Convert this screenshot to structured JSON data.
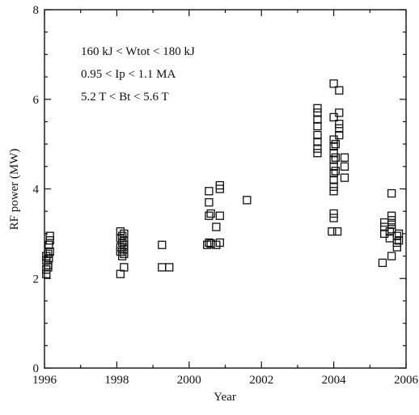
{
  "chart_data": {
    "type": "scatter",
    "xlabel": "Year",
    "ylabel": "RF power (MW)",
    "xlim": [
      1996,
      2006
    ],
    "ylim": [
      0,
      8
    ],
    "xticks": [
      "1996",
      "1998",
      "2000",
      "2002",
      "2004",
      "2006"
    ],
    "yticks": [
      "0",
      "2",
      "4",
      "6",
      "8"
    ],
    "grid": false,
    "marker": "open-square",
    "colors": {
      "axis": "#111111",
      "marker": "#111111"
    },
    "annotations": [
      "160 kJ < Wtot < 180 kJ",
      "0.95 < Ip < 1.1 MA",
      "5.2 T < Bt < 5.6 T"
    ],
    "points": [
      {
        "x": 1996.05,
        "y": 2.1
      },
      {
        "x": 1996.05,
        "y": 2.2
      },
      {
        "x": 1996.1,
        "y": 2.3
      },
      {
        "x": 1996.05,
        "y": 2.4
      },
      {
        "x": 1996.12,
        "y": 2.45
      },
      {
        "x": 1996.05,
        "y": 2.5
      },
      {
        "x": 1996.1,
        "y": 2.55
      },
      {
        "x": 1996.15,
        "y": 2.6
      },
      {
        "x": 1996.12,
        "y": 2.75
      },
      {
        "x": 1996.15,
        "y": 2.85
      },
      {
        "x": 1996.15,
        "y": 2.95
      },
      {
        "x": 1996.1,
        "y": 2.25
      },
      {
        "x": 1998.1,
        "y": 2.1
      },
      {
        "x": 1998.2,
        "y": 2.25
      },
      {
        "x": 1998.15,
        "y": 2.5
      },
      {
        "x": 1998.2,
        "y": 2.55
      },
      {
        "x": 1998.1,
        "y": 2.6
      },
      {
        "x": 1998.2,
        "y": 2.65
      },
      {
        "x": 1998.1,
        "y": 2.7
      },
      {
        "x": 1998.2,
        "y": 2.75
      },
      {
        "x": 1998.15,
        "y": 2.8
      },
      {
        "x": 1998.2,
        "y": 2.85
      },
      {
        "x": 1998.1,
        "y": 2.9
      },
      {
        "x": 1998.15,
        "y": 2.95
      },
      {
        "x": 1998.2,
        "y": 3.0
      },
      {
        "x": 1998.1,
        "y": 3.05
      },
      {
        "x": 1998.15,
        "y": 2.6
      },
      {
        "x": 1999.25,
        "y": 2.75
      },
      {
        "x": 1999.25,
        "y": 2.25
      },
      {
        "x": 1999.45,
        "y": 2.25
      },
      {
        "x": 2000.5,
        "y": 2.75
      },
      {
        "x": 2000.55,
        "y": 2.8
      },
      {
        "x": 2000.6,
        "y": 2.78
      },
      {
        "x": 2000.75,
        "y": 2.75
      },
      {
        "x": 2000.85,
        "y": 2.8
      },
      {
        "x": 2000.55,
        "y": 3.4
      },
      {
        "x": 2000.6,
        "y": 3.45
      },
      {
        "x": 2000.55,
        "y": 3.7
      },
      {
        "x": 2000.55,
        "y": 3.95
      },
      {
        "x": 2000.75,
        "y": 3.15
      },
      {
        "x": 2000.85,
        "y": 3.4
      },
      {
        "x": 2000.85,
        "y": 4.0
      },
      {
        "x": 2000.85,
        "y": 4.08
      },
      {
        "x": 2001.6,
        "y": 3.75
      },
      {
        "x": 2003.55,
        "y": 4.8
      },
      {
        "x": 2003.55,
        "y": 4.9
      },
      {
        "x": 2003.55,
        "y": 5.05
      },
      {
        "x": 2003.55,
        "y": 5.2
      },
      {
        "x": 2003.55,
        "y": 5.4
      },
      {
        "x": 2003.55,
        "y": 5.55
      },
      {
        "x": 2003.55,
        "y": 5.7
      },
      {
        "x": 2003.55,
        "y": 5.8
      },
      {
        "x": 2003.95,
        "y": 3.05
      },
      {
        "x": 2004.0,
        "y": 3.35
      },
      {
        "x": 2004.0,
        "y": 3.45
      },
      {
        "x": 2004.0,
        "y": 3.95
      },
      {
        "x": 2004.0,
        "y": 4.05
      },
      {
        "x": 2004.0,
        "y": 4.2
      },
      {
        "x": 2004.0,
        "y": 4.35
      },
      {
        "x": 2004.0,
        "y": 4.5
      },
      {
        "x": 2004.0,
        "y": 4.65
      },
      {
        "x": 2004.0,
        "y": 4.8
      },
      {
        "x": 2004.0,
        "y": 4.95
      },
      {
        "x": 2004.0,
        "y": 5.1
      },
      {
        "x": 2004.05,
        "y": 4.4
      },
      {
        "x": 2004.05,
        "y": 4.7
      },
      {
        "x": 2004.05,
        "y": 5.0
      },
      {
        "x": 2004.0,
        "y": 5.6
      },
      {
        "x": 2004.0,
        "y": 6.35
      },
      {
        "x": 2004.15,
        "y": 6.2
      },
      {
        "x": 2004.15,
        "y": 5.7
      },
      {
        "x": 2004.15,
        "y": 5.45
      },
      {
        "x": 2004.15,
        "y": 5.35
      },
      {
        "x": 2004.15,
        "y": 5.2
      },
      {
        "x": 2004.1,
        "y": 3.05
      },
      {
        "x": 2004.3,
        "y": 4.7
      },
      {
        "x": 2004.3,
        "y": 4.5
      },
      {
        "x": 2004.3,
        "y": 4.25
      },
      {
        "x": 2005.35,
        "y": 2.35
      },
      {
        "x": 2005.4,
        "y": 3.0
      },
      {
        "x": 2005.4,
        "y": 3.15
      },
      {
        "x": 2005.4,
        "y": 3.25
      },
      {
        "x": 2005.55,
        "y": 2.9
      },
      {
        "x": 2005.55,
        "y": 3.05
      },
      {
        "x": 2005.6,
        "y": 3.1
      },
      {
        "x": 2005.6,
        "y": 3.2
      },
      {
        "x": 2005.6,
        "y": 3.3
      },
      {
        "x": 2005.6,
        "y": 3.4
      },
      {
        "x": 2005.6,
        "y": 2.5
      },
      {
        "x": 2005.6,
        "y": 3.9
      },
      {
        "x": 2005.75,
        "y": 2.7
      },
      {
        "x": 2005.75,
        "y": 2.8
      },
      {
        "x": 2005.75,
        "y": 2.95
      },
      {
        "x": 2005.8,
        "y": 3.0
      },
      {
        "x": 2005.8,
        "y": 2.85
      }
    ]
  }
}
